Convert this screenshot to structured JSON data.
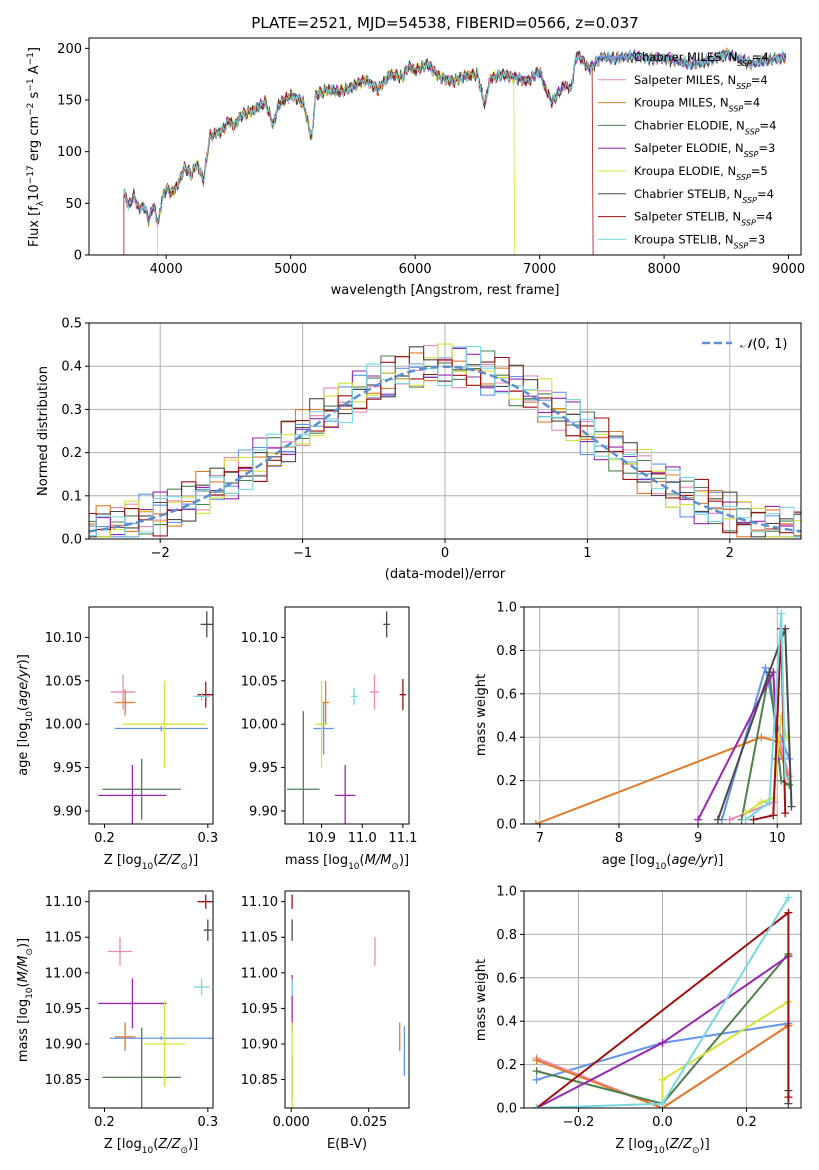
{
  "figure": {
    "title": "PLATE=2521, MJD=54538, FIBERID=0566, z=0.037"
  },
  "colors": [
    "#6495ed",
    "#e88ab8",
    "#e07b2a",
    "#4f7f4f",
    "#9926b2",
    "#d4e23a",
    "#4a4a4a",
    "#a01010",
    "#78d8e0"
  ],
  "chart_data": [
    {
      "type": "line",
      "panel": "spectrum",
      "xlabel": "wavelength [Angstrom, rest frame]",
      "ylabel": "Flux [f_λ10^-17 erg cm^-2 s^-1 A^-1]",
      "xlim": [
        3380,
        9100
      ],
      "ylim": [
        0,
        210
      ],
      "xticks": [
        "4000",
        "5000",
        "6000",
        "7000",
        "8000",
        "9000"
      ],
      "yticks": [
        "0",
        "50",
        "100",
        "150",
        "200"
      ],
      "x_range_data": [
        3660,
        8980
      ],
      "model_cutoffs": [
        {
          "model": "Kroupa ELODIE",
          "x_start": 3930,
          "x_end": 6800
        },
        {
          "model": "Salpeter STELIB",
          "x_start": 3660,
          "x_end": 7430
        }
      ],
      "envelope": {
        "x": [
          3660,
          3680,
          3700,
          3740,
          3780,
          3820,
          3860,
          3900,
          3935,
          3970,
          4000,
          4050,
          4100,
          4150,
          4200,
          4250,
          4300,
          4350,
          4400,
          4450,
          4500,
          4550,
          4600,
          4700,
          4800,
          4860,
          4900,
          5000,
          5100,
          5170,
          5200,
          5300,
          5400,
          5500,
          5600,
          5700,
          5800,
          5900,
          5950,
          6000,
          6100,
          6200,
          6300,
          6400,
          6500,
          6560,
          6600,
          6700,
          6800,
          6900,
          7000,
          7050,
          7100,
          7200,
          7250,
          7300,
          7400,
          7500,
          7600,
          7700,
          7800,
          7900,
          8000,
          8100,
          8200,
          8300,
          8400,
          8500,
          8600,
          8700,
          8800,
          8900,
          8980
        ],
        "y": [
          60,
          55,
          47,
          58,
          44,
          48,
          34,
          48,
          30,
          56,
          64,
          60,
          70,
          85,
          78,
          88,
          72,
          115,
          118,
          120,
          130,
          125,
          135,
          140,
          148,
          125,
          145,
          155,
          148,
          112,
          155,
          160,
          158,
          163,
          170,
          160,
          175,
          172,
          183,
          178,
          185,
          172,
          168,
          173,
          175,
          145,
          170,
          175,
          172,
          168,
          178,
          160,
          148,
          165,
          160,
          195,
          180,
          192,
          190,
          192,
          192,
          190,
          190,
          188,
          185,
          186,
          190,
          195,
          190,
          185,
          188,
          190,
          192
        ]
      },
      "series": [
        {
          "name": "Chabrier MILES, N_SSP=4"
        },
        {
          "name": "Salpeter MILES, N_SSP=4"
        },
        {
          "name": "Kroupa MILES, N_SSP=4"
        },
        {
          "name": "Chabrier ELODIE, N_SSP=4"
        },
        {
          "name": "Salpeter ELODIE, N_SSP=3"
        },
        {
          "name": "Kroupa ELODIE, N_SSP=5"
        },
        {
          "name": "Chabrier STELIB, N_SSP=4"
        },
        {
          "name": "Salpeter STELIB, N_SSP=4"
        },
        {
          "name": "Kroupa STELIB, N_SSP=3"
        }
      ],
      "legend": "upper-right"
    },
    {
      "type": "line",
      "panel": "residuals",
      "xlabel": "(data-model)/error",
      "ylabel": "Normed distribution",
      "xlim": [
        -2.5,
        2.5
      ],
      "ylim": [
        0,
        0.5
      ],
      "xticks": [
        -2,
        -1,
        0,
        1,
        2
      ],
      "yticks": [
        0.0,
        0.1,
        0.2,
        0.3,
        0.4,
        0.5
      ],
      "grid": true,
      "bin_width": 0.1,
      "gaussian_label": "N(0,1)",
      "legend": "upper-right"
    },
    {
      "type": "scatter",
      "panel": "Z-age",
      "xlabel": "Z [log10(Z/Z⊙)]",
      "ylabel": "age [log10(age/yr)]",
      "xlim": [
        0.185,
        0.305
      ],
      "ylim": [
        9.885,
        10.135
      ],
      "xticks": [
        0.2,
        0.3
      ],
      "yticks": [
        9.9,
        9.95,
        10.0,
        10.05,
        10.1
      ],
      "points": [
        {
          "x": 0.255,
          "y": 9.995,
          "xerr": 0.045,
          "yerr": 0.003
        },
        {
          "x": 0.218,
          "y": 10.037,
          "xerr": 0.012,
          "yerr": 0.02
        },
        {
          "x": 0.22,
          "y": 10.025,
          "xerr": 0.01,
          "yerr": 0.015
        },
        {
          "x": 0.236,
          "y": 9.925,
          "xerr": 0.038,
          "yerr": 0.035
        },
        {
          "x": 0.227,
          "y": 9.918,
          "xerr": 0.033,
          "yerr": 0.035
        },
        {
          "x": 0.258,
          "y": 10.0,
          "xerr": 0.04,
          "yerr": 0.05
        },
        {
          "x": 0.299,
          "y": 10.115,
          "xerr": 0.006,
          "yerr": 0.015
        },
        {
          "x": 0.298,
          "y": 10.034,
          "xerr": 0.008,
          "yerr": 0.015
        },
        {
          "x": 0.294,
          "y": 10.032,
          "xerr": 0.008,
          "yerr": 0.005
        }
      ]
    },
    {
      "type": "scatter",
      "panel": "mass-age",
      "xlabel": "mass [log10(M/M⊙)]",
      "ylabel": "",
      "xlim": [
        10.81,
        11.115
      ],
      "ylim": [
        9.885,
        10.135
      ],
      "xticks": [
        10.9,
        11.0,
        11.1
      ],
      "yticks": [
        9.9,
        9.95,
        10.0,
        10.05,
        10.1
      ],
      "points": [
        {
          "x": 10.905,
          "y": 9.995,
          "xerr": 0.025,
          "yerr": 0.03
        },
        {
          "x": 11.03,
          "y": 10.037,
          "xerr": 0.012,
          "yerr": 0.02
        },
        {
          "x": 10.91,
          "y": 10.025,
          "xerr": 0.008,
          "yerr": 0.025
        },
        {
          "x": 10.855,
          "y": 9.925,
          "xerr": 0.04,
          "yerr": 0.09
        },
        {
          "x": 10.958,
          "y": 9.918,
          "xerr": 0.025,
          "yerr": 0.035
        },
        {
          "x": 10.9,
          "y": 10.0,
          "xerr": 0.015,
          "yerr": 0.05
        },
        {
          "x": 11.06,
          "y": 10.115,
          "xerr": 0.008,
          "yerr": 0.015
        },
        {
          "x": 11.1,
          "y": 10.034,
          "xerr": 0.008,
          "yerr": 0.018
        },
        {
          "x": 10.98,
          "y": 10.032,
          "xerr": 0.008,
          "yerr": 0.01
        }
      ]
    },
    {
      "type": "line",
      "panel": "age-weight",
      "xlabel": "age [log10(age/yr)]",
      "ylabel": "mass weight",
      "xlim": [
        6.8,
        10.3
      ],
      "ylim": [
        0,
        1
      ],
      "xticks": [
        7,
        8,
        9,
        10
      ],
      "yticks": [
        0.0,
        0.2,
        0.4,
        0.6,
        0.8,
        1.0
      ],
      "grid": true,
      "series": [
        {
          "x": [
            9.3,
            9.85,
            10.0,
            10.15
          ],
          "y": [
            0.02,
            0.72,
            0.45,
            0.3
          ]
        },
        {
          "x": [
            9.4,
            9.95,
            10.02,
            10.15
          ],
          "y": [
            0.02,
            0.1,
            0.4,
            0.22
          ]
        },
        {
          "x": [
            6.95,
            9.8,
            10.0,
            10.13
          ],
          "y": [
            0.0,
            0.4,
            0.38,
            0.22
          ]
        },
        {
          "x": [
            9.55,
            9.9,
            10.05,
            10.15
          ],
          "y": [
            0.02,
            0.7,
            0.2,
            0.18
          ]
        },
        {
          "x": [
            9.0,
            9.95,
            10.0
          ],
          "y": [
            0.02,
            0.7,
            0.3
          ]
        },
        {
          "x": [
            9.6,
            9.8,
            9.95,
            10.05,
            10.12
          ],
          "y": [
            0.05,
            0.1,
            0.12,
            0.5,
            0.4
          ]
        },
        {
          "x": [
            9.25,
            9.9,
            10.1,
            10.18
          ],
          "y": [
            0.02,
            0.7,
            0.9,
            0.08
          ]
        },
        {
          "x": [
            9.7,
            9.95,
            10.05,
            10.1
          ],
          "y": [
            0.02,
            0.04,
            0.9,
            0.05
          ]
        },
        {
          "x": [
            9.6,
            9.9,
            10.05,
            10.1
          ],
          "y": [
            0.02,
            0.1,
            0.97,
            0.22
          ]
        }
      ]
    },
    {
      "type": "scatter",
      "panel": "Z-mass",
      "xlabel": "Z [log10(Z/Z⊙)]",
      "ylabel": "mass [log10(M/M⊙)]",
      "xlim": [
        0.185,
        0.305
      ],
      "ylim": [
        10.81,
        11.115
      ],
      "xticks": [
        0.2,
        0.3
      ],
      "yticks": [
        10.85,
        10.9,
        10.95,
        11.0,
        11.05,
        11.1
      ],
      "points": [
        {
          "x": 0.255,
          "y": 10.908,
          "xerr": 0.05,
          "yerr": 0.003
        },
        {
          "x": 0.215,
          "y": 11.03,
          "xerr": 0.012,
          "yerr": 0.02
        },
        {
          "x": 0.22,
          "y": 10.91,
          "xerr": 0.01,
          "yerr": 0.02
        },
        {
          "x": 0.236,
          "y": 10.853,
          "xerr": 0.038,
          "yerr": 0.07
        },
        {
          "x": 0.227,
          "y": 10.957,
          "xerr": 0.033,
          "yerr": 0.035
        },
        {
          "x": 0.258,
          "y": 10.9,
          "xerr": 0.02,
          "yerr": 0.06
        },
        {
          "x": 0.3,
          "y": 11.06,
          "xerr": 0.004,
          "yerr": 0.015
        },
        {
          "x": 0.298,
          "y": 11.1,
          "xerr": 0.008,
          "yerr": 0.01
        },
        {
          "x": 0.294,
          "y": 10.98,
          "xerr": 0.008,
          "yerr": 0.012
        }
      ]
    },
    {
      "type": "scatter",
      "panel": "EBV-mass",
      "xlabel": "E(B-V)",
      "ylabel": "",
      "xlim": [
        -0.002,
        0.038
      ],
      "ylim": [
        10.81,
        11.115
      ],
      "xticks": [
        "0.000",
        "0.025"
      ],
      "yticks": [
        10.85,
        10.9,
        10.95,
        11.0,
        11.05,
        11.1
      ],
      "points": [
        {
          "x": 0.0365,
          "y": 10.89,
          "yerr": 0.035
        },
        {
          "x": 0.027,
          "y": 11.03,
          "yerr": 0.02
        },
        {
          "x": 0.035,
          "y": 10.91,
          "yerr": 0.02
        },
        {
          "x": 0.0003,
          "y": 10.853,
          "yerr": 0.03
        },
        {
          "x": 0.0003,
          "y": 10.957,
          "yerr": 0.04
        },
        {
          "x": 0.0003,
          "y": 10.87,
          "yerr": 0.06
        },
        {
          "x": 0.0003,
          "y": 11.06,
          "yerr": 0.015
        },
        {
          "x": 0.0003,
          "y": 11.1,
          "yerr": 0.01
        },
        {
          "x": 0.0003,
          "y": 10.98,
          "yerr": 0.012
        }
      ]
    },
    {
      "type": "line",
      "panel": "Z-weight",
      "xlabel": "Z [log10(Z/Z⊙)]",
      "ylabel": "mass weight",
      "xlim": [
        -0.33,
        0.33
      ],
      "ylim": [
        0,
        1
      ],
      "xticks": [
        -0.2,
        0.0,
        0.2
      ],
      "yticks": [
        0.0,
        0.2,
        0.4,
        0.6,
        0.8,
        1.0
      ],
      "grid": true,
      "series": [
        {
          "x": [
            -0.3,
            0.0,
            0.3
          ],
          "y": [
            0.13,
            0.3,
            0.39
          ]
        },
        {
          "x": [
            -0.3,
            0.0,
            0.3
          ],
          "y": [
            0.23,
            0.0,
            0.38
          ]
        },
        {
          "x": [
            -0.3,
            0.0,
            0.3
          ],
          "y": [
            0.22,
            0.0,
            0.38
          ]
        },
        {
          "x": [
            -0.3,
            0.0,
            0.3
          ],
          "y": [
            0.17,
            0.02,
            0.71
          ]
        },
        {
          "x": [
            -0.3,
            0.0,
            0.3
          ],
          "y": [
            0.0,
            0.3,
            0.7
          ]
        },
        {
          "x": [
            0.0,
            0.0,
            0.3
          ],
          "y": [
            0.0,
            0.13,
            0.49
          ]
        },
        {
          "x": [
            0.3,
            0.3,
            0.3
          ],
          "y": [
            0.02,
            0.7,
            0.08
          ]
        },
        {
          "x": [
            -0.3,
            0.3,
            0.3
          ],
          "y": [
            0.0,
            0.9,
            0.05
          ]
        },
        {
          "x": [
            -0.3,
            0.0,
            0.3
          ],
          "y": [
            0.0,
            0.02,
            0.97
          ]
        }
      ]
    }
  ]
}
